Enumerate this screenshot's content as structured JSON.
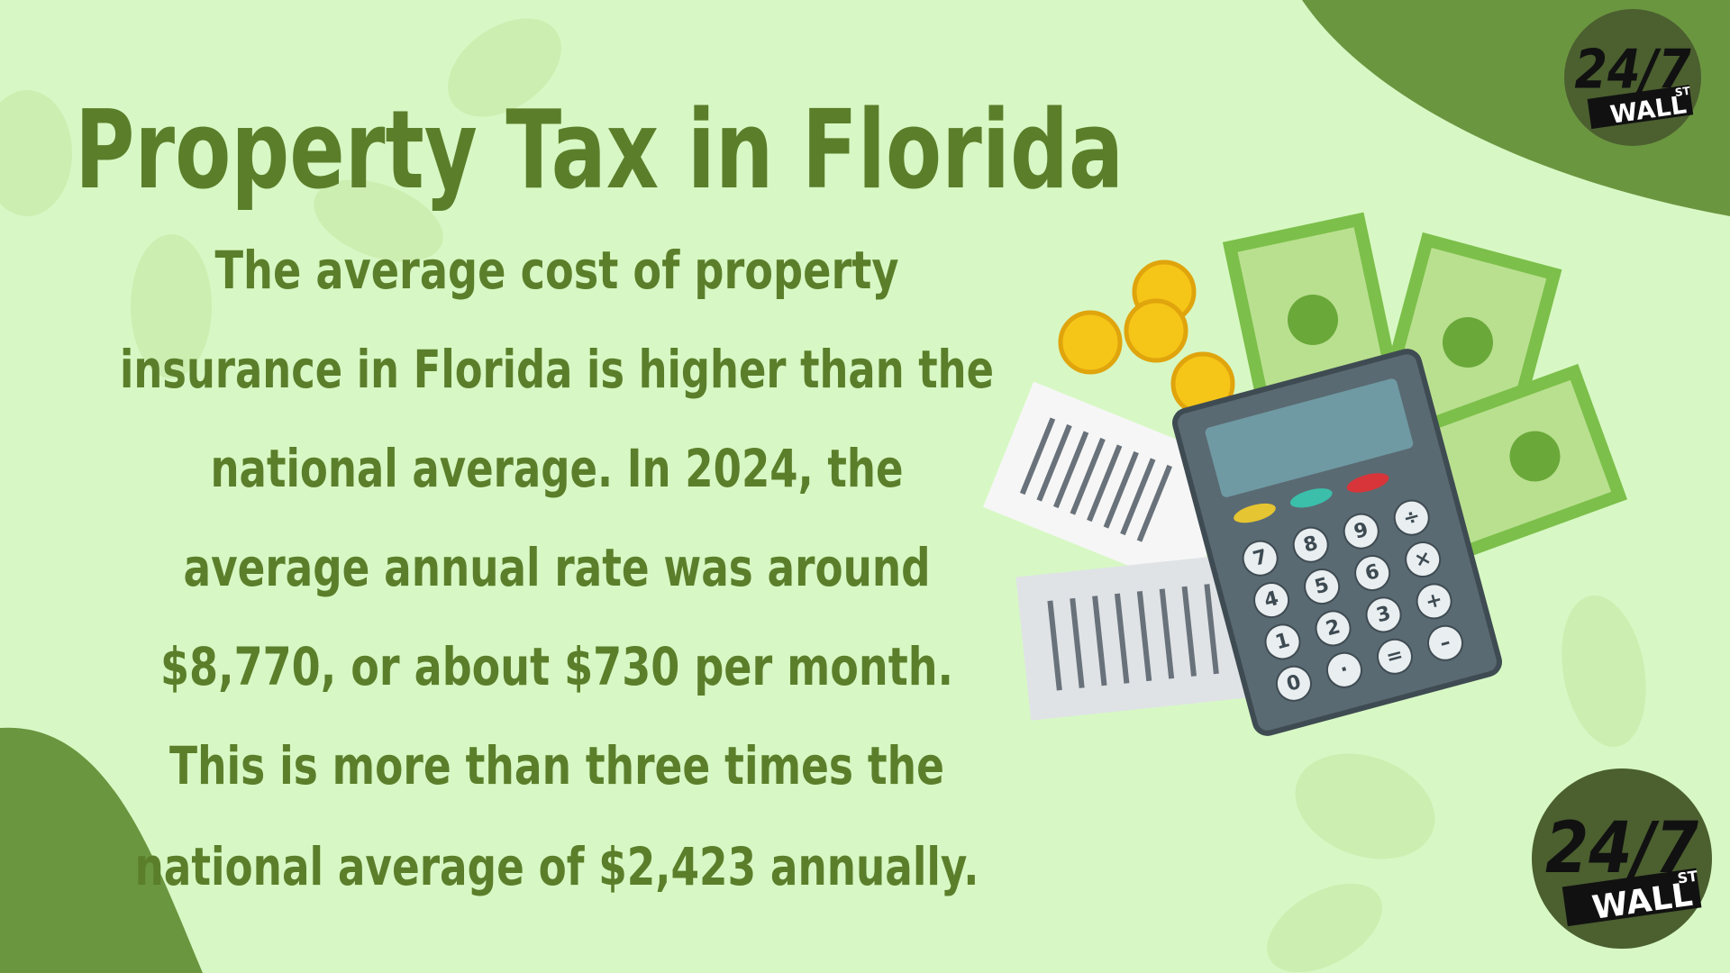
{
  "title": "Property Tax in Florida",
  "body": {
    "lines": [
      "The average cost of property",
      "insurance in Florida is higher than the",
      "national average. In 2024, the",
      "average annual rate was around",
      "$8,770, or about $730 per month.",
      "This is more than three times the",
      "national average of $2,423 annually."
    ]
  },
  "logos": [
    {
      "number": "24/7",
      "word": "WALL",
      "suffix": "ST"
    },
    {
      "number": "24/7",
      "word": "WALL",
      "suffix": "ST"
    }
  ],
  "calculator": {
    "keys": [
      "7",
      "8",
      "9",
      "÷",
      "4",
      "5",
      "6",
      "×",
      "1",
      "2",
      "3",
      "+",
      "0",
      "·",
      "=",
      "–"
    ]
  }
}
